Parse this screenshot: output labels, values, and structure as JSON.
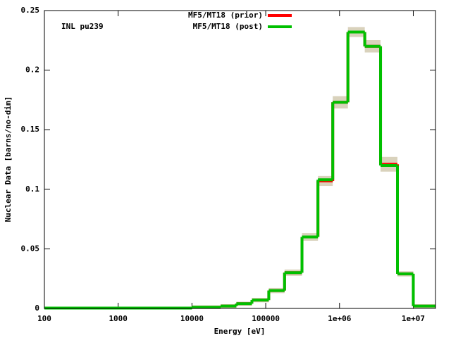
{
  "chart_data": {
    "type": "histogram",
    "annotation": "INL pu239",
    "x_label": "Energy [eV]",
    "y_label": "Nuclear Data [barns/no-dim]",
    "x_log": true,
    "xlim": [
      100,
      20000000
    ],
    "xticks": [
      100,
      1000,
      10000,
      100000,
      {
        "value": 1000000,
        "label": "1e+06"
      },
      {
        "value": 10000000,
        "label": "1e+07"
      }
    ],
    "ylim": [
      0,
      0.25
    ],
    "yticks": [
      0,
      0.05,
      0.1,
      0.15,
      0.2,
      0.25
    ],
    "bins": [
      100,
      10000,
      24500,
      40000,
      65000,
      110000,
      180000,
      310000,
      510000,
      810000,
      1300000,
      2200000,
      3600000,
      6100000,
      10000000,
      20000000
    ],
    "uncertainty_color": "#d9d2bc",
    "uncertainty": [
      0,
      0.0003,
      0.0003,
      0.0005,
      0.0007,
      0.001,
      0.0015,
      0.002,
      0.003,
      0.004,
      0.003,
      0.004,
      0.005,
      0.001,
      0.0002
    ],
    "series": [
      {
        "name": "MF5/MT18 (prior)",
        "color": "#ff0000",
        "values": [
          0.0003,
          0.001,
          0.002,
          0.004,
          0.007,
          0.015,
          0.03,
          0.06,
          0.107,
          0.173,
          0.232,
          0.22,
          0.121,
          0.029,
          0.002
        ]
      },
      {
        "name": "MF5/MT18 (post)",
        "color": "#00c000",
        "values": [
          0.0003,
          0.001,
          0.002,
          0.004,
          0.007,
          0.015,
          0.03,
          0.06,
          0.108,
          0.173,
          0.232,
          0.22,
          0.12,
          0.029,
          0.002
        ]
      }
    ]
  }
}
